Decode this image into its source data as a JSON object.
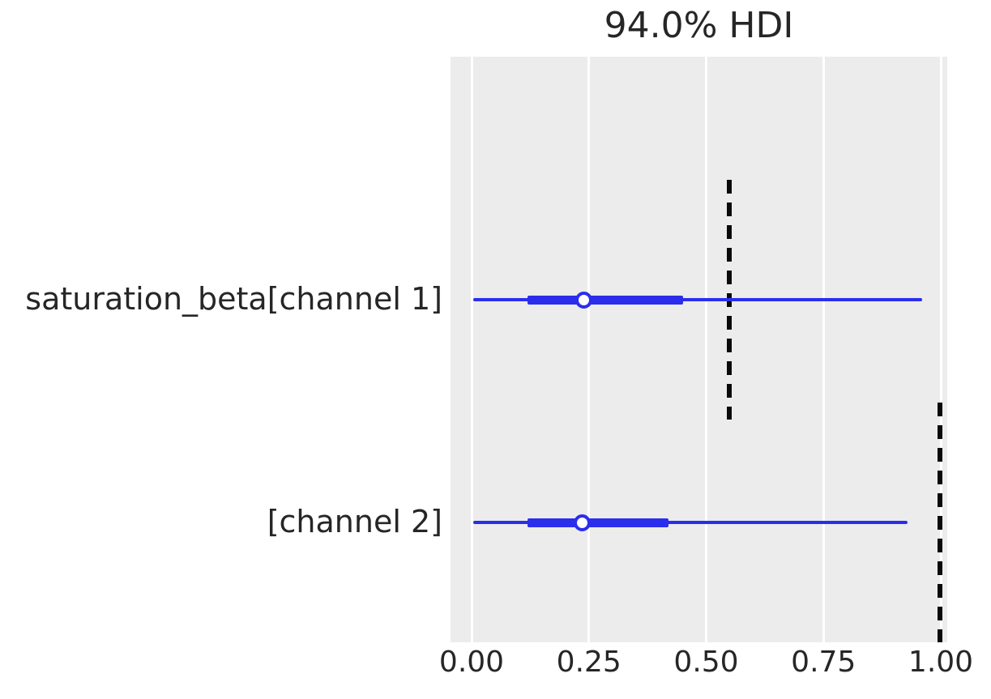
{
  "figure": {
    "title": "94.0% HDI"
  },
  "colors": {
    "interval_blue": "#2a2eec",
    "reference_black": "#0a0a0a",
    "plot_background": "#ececec",
    "gridline_white": "#ffffff",
    "text": "#262626",
    "page_background": "#ffffff"
  },
  "chart_data": {
    "type": "forest",
    "title": "94.0% HDI",
    "hdi_probability": "94.0%",
    "xlabel": "",
    "ylabel": "",
    "legend": "none",
    "grid": "vertical white gridlines on gray panel",
    "x_axis": {
      "tick_labels": [
        "0.00",
        "0.25",
        "0.50",
        "0.75",
        "1.00"
      ],
      "tick_values": [
        0,
        0.25,
        0.5,
        0.75,
        1.0
      ],
      "range": [
        -0.045,
        1.014
      ]
    },
    "rows": [
      {
        "label": "saturation_beta[channel 1]",
        "hdi_low": 0.003,
        "hdi_high": 0.96,
        "quartile_low": 0.12,
        "quartile_high": 0.45,
        "median": 0.24,
        "reference_value": 0.55
      },
      {
        "label": "[channel 2]",
        "hdi_low": 0.003,
        "hdi_high": 0.93,
        "quartile_low": 0.12,
        "quartile_high": 0.42,
        "median": 0.235,
        "reference_value": 0.998
      }
    ]
  }
}
